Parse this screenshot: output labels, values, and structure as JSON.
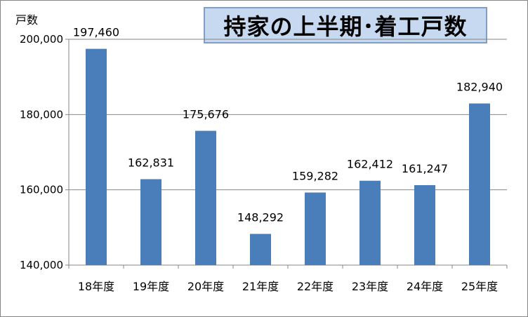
{
  "chart_data": {
    "type": "bar",
    "title": "持家の上半期･着工戸数",
    "ylabel": "戸数",
    "categories": [
      "18年度",
      "19年度",
      "20年度",
      "21年度",
      "22年度",
      "23年度",
      "24年度",
      "25年度"
    ],
    "values": [
      197460,
      162831,
      175676,
      148292,
      159282,
      162412,
      161247,
      182940
    ],
    "data_labels": [
      "197,460",
      "162,831",
      "175,676",
      "148,292",
      "159,282",
      "162,412",
      "161,247",
      "182,940"
    ],
    "ylim": [
      140000,
      200000
    ],
    "yticks": [
      140000,
      160000,
      180000,
      200000
    ],
    "ytick_labels": [
      "140,000",
      "160,000",
      "180,000",
      "200,000"
    ],
    "grid": true,
    "bar_color": "#4a7ebb"
  }
}
